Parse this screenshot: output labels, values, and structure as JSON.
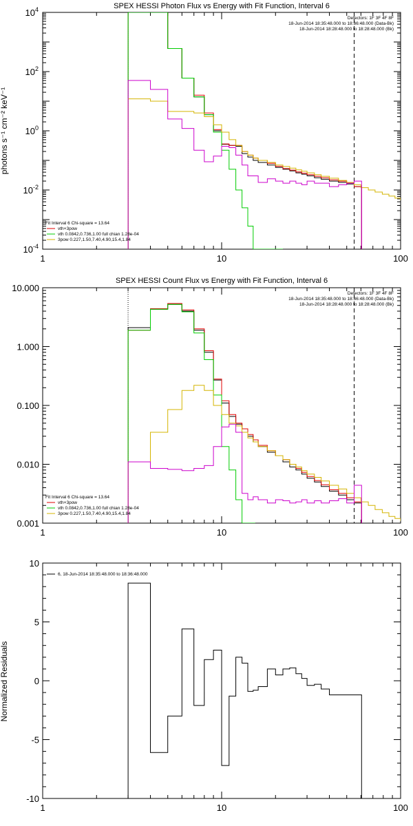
{
  "chart_data": [
    {
      "type": "line",
      "title": "SPEX HESSI Photon Flux vs Energy with Fit Function, Interval 6",
      "ylabel": "photons s⁻¹ cm⁻² keV⁻¹",
      "xlabel": "",
      "xscale": "log",
      "yscale": "log",
      "xlim": [
        1,
        100
      ],
      "ylim": [
        0.0001,
        10000
      ],
      "x_ticks": [
        "1",
        "10",
        "100"
      ],
      "y_ticks": [
        "10^-4",
        "10^-2",
        "10^0",
        "10^2",
        "10^4"
      ],
      "header_lines": [
        "Detectors: 1F 3F 4F 8F",
        "18-Jun-2014 18:35:48.000 to 18:36:48.000 (Data-Bk)",
        "18-Jun-2014 18:28:48.000 to 18:28:48.000 (Bk)"
      ],
      "legend_lines": [
        {
          "text": "Fit Interval  6    Chi-square = 13.64",
          "color": "#000000"
        },
        {
          "text": "vth+3pow",
          "color": "#e00000"
        },
        {
          "text": "vth 0.0842,0.736,1.00  full chian 1.28e-04",
          "color": "#00cc00"
        },
        {
          "text": "3pow 0.227,1.50,7.40,4.90,15.4,1.84",
          "color": "#d4b400"
        }
      ],
      "vlines": [
        {
          "x": 3,
          "style": "dotted",
          "color": "#000000"
        },
        {
          "x": 55,
          "style": "dashed",
          "color": "#000000"
        }
      ],
      "series": [
        {
          "color": "#000000",
          "x": [
            3,
            4,
            5,
            6,
            7,
            8,
            9,
            10,
            11,
            12,
            13,
            14,
            15,
            16,
            18,
            20,
            22,
            24,
            26,
            28,
            30,
            33,
            36,
            40,
            45,
            50,
            55
          ],
          "values": [
            10000,
            10000,
            600,
            60,
            14,
            3.5,
            1,
            0.35,
            0.32,
            0.3,
            0.17,
            0.13,
            0.1,
            0.085,
            0.07,
            0.058,
            0.05,
            0.044,
            0.038,
            0.034,
            0.03,
            0.026,
            0.023,
            0.02,
            0.018,
            0.016,
            0.013
          ]
        },
        {
          "color": "#e00000",
          "x": [
            3,
            4,
            5,
            6,
            7,
            8,
            9,
            10,
            11,
            12,
            13,
            14,
            15,
            16,
            18,
            20,
            22,
            24,
            26,
            28,
            30,
            33,
            36,
            40,
            45,
            50,
            55
          ],
          "values": [
            10000,
            10000,
            600,
            60,
            16,
            4,
            1.1,
            0.36,
            0.32,
            0.32,
            0.2,
            0.15,
            0.12,
            0.1,
            0.08,
            0.063,
            0.053,
            0.047,
            0.041,
            0.037,
            0.033,
            0.029,
            0.026,
            0.022,
            0.02,
            0.017,
            0.013
          ]
        },
        {
          "color": "#00cc00",
          "x": [
            3,
            4,
            5,
            6,
            7,
            8,
            9,
            10,
            11,
            12,
            13,
            14,
            15,
            16,
            18,
            20
          ],
          "values": [
            10000,
            10000,
            600,
            60,
            14,
            3.5,
            0.9,
            0.22,
            0.05,
            0.01,
            0.0025,
            0.0006,
            0.0001,
            0.0001,
            0.0001,
            0.0001
          ]
        },
        {
          "color": "#d4b400",
          "x": [
            3,
            4,
            5,
            6,
            7,
            8,
            9,
            10,
            11,
            12,
            13,
            14,
            15,
            16,
            18,
            20,
            22,
            24,
            26,
            28,
            30,
            33,
            36,
            40,
            45,
            50,
            55,
            60,
            66,
            72,
            79,
            86,
            93,
            100
          ],
          "values": [
            12,
            10,
            4.5,
            4.5,
            4,
            3,
            1.6,
            0.9,
            0.5,
            0.32,
            0.2,
            0.15,
            0.12,
            0.1,
            0.085,
            0.07,
            0.062,
            0.055,
            0.048,
            0.043,
            0.038,
            0.033,
            0.029,
            0.025,
            0.021,
            0.018,
            0.015,
            0.012,
            0.01,
            0.0085,
            0.0072,
            0.0062,
            0.0053,
            0.0046
          ]
        },
        {
          "color": "#cc00cc",
          "x": [
            3,
            4,
            5,
            6,
            7,
            8,
            9,
            10,
            11,
            12,
            13,
            14,
            15,
            16,
            18,
            20,
            22,
            24,
            26,
            28,
            30,
            33,
            36,
            40,
            45,
            50,
            55
          ],
          "values": [
            50,
            25,
            2.5,
            1.2,
            0.22,
            0.09,
            0.14,
            0.3,
            0.27,
            0.15,
            0.07,
            0.03,
            0.03,
            0.018,
            0.024,
            0.02,
            0.017,
            0.02,
            0.017,
            0.015,
            0.02,
            0.017,
            0.017,
            0.013,
            0.015,
            0.017,
            0.02
          ]
        }
      ]
    },
    {
      "type": "line",
      "title": "SPEX HESSI Count Flux vs Energy with Fit Function, Interval 6",
      "ylabel": "",
      "xlabel": "",
      "xscale": "log",
      "yscale": "log",
      "xlim": [
        1,
        100
      ],
      "ylim": [
        0.001,
        10
      ],
      "x_ticks": [
        "1",
        "10",
        "100"
      ],
      "y_ticks": [
        "0.001",
        "0.010",
        "0.100",
        "1.000",
        "10.000"
      ],
      "header_lines": [
        "Detectors: 1F 3F 4F 8F",
        "18-Jun-2014 18:35:48.000 to 18:36:48.000 (Data-Bk)",
        "18-Jun-2014 18:28:48.000 to 18:28:48.000 (Bk)"
      ],
      "legend_lines": [
        {
          "text": "Fit Interval  6    Chi-square = 13.64",
          "color": "#000000"
        },
        {
          "text": "vth+3pow",
          "color": "#e00000"
        },
        {
          "text": "vth 0.0842,0.736,1.00  full chian 1.28e-04",
          "color": "#00cc00"
        },
        {
          "text": "3pow 0.227,1.50,7.40,4.90,15.4,1.84",
          "color": "#d4b400"
        }
      ],
      "vlines": [
        {
          "x": 3,
          "style": "dotted",
          "color": "#000000"
        },
        {
          "x": 55,
          "style": "dashed",
          "color": "#000000"
        }
      ],
      "series": [
        {
          "color": "#000000",
          "x": [
            3,
            4,
            5,
            6,
            7,
            8,
            9,
            10,
            11,
            12,
            13,
            14,
            15,
            16,
            18,
            20,
            22,
            24,
            26,
            28,
            30,
            33,
            36,
            40,
            45,
            50,
            55
          ],
          "values": [
            2.1,
            4.3,
            5.2,
            4,
            1.9,
            0.8,
            0.27,
            0.11,
            0.065,
            0.048,
            0.04,
            0.03,
            0.024,
            0.02,
            0.016,
            0.014,
            0.011,
            0.009,
            0.008,
            0.0068,
            0.0058,
            0.005,
            0.0042,
            0.0035,
            0.003,
            0.0025,
            0.0022
          ]
        },
        {
          "color": "#e00000",
          "x": [
            3,
            4,
            5,
            6,
            7,
            8,
            9,
            10,
            11,
            12,
            13,
            14,
            15,
            16,
            18,
            20,
            22,
            24,
            26,
            28,
            30,
            33,
            36,
            40,
            45,
            50,
            55
          ],
          "values": [
            1.9,
            4.4,
            5.4,
            4.2,
            2,
            0.85,
            0.28,
            0.12,
            0.07,
            0.05,
            0.04,
            0.032,
            0.026,
            0.021,
            0.017,
            0.014,
            0.012,
            0.01,
            0.0085,
            0.0073,
            0.0062,
            0.0053,
            0.0045,
            0.0037,
            0.0032,
            0.0027,
            0.0023
          ]
        },
        {
          "color": "#00cc00",
          "x": [
            3,
            4,
            5,
            6,
            7,
            8,
            9,
            10,
            11,
            12,
            13,
            14
          ],
          "values": [
            1.9,
            4.3,
            5.2,
            3.9,
            1.7,
            0.6,
            0.15,
            0.02,
            0.008,
            0.0025,
            0.001,
            0.001
          ]
        },
        {
          "color": "#d4b400",
          "x": [
            3,
            4,
            5,
            6,
            7,
            8,
            9,
            10,
            11,
            12,
            13,
            14,
            15,
            16,
            18,
            20,
            22,
            24,
            26,
            28,
            30,
            33,
            36,
            40,
            45,
            50,
            55,
            60,
            66,
            72,
            79,
            86,
            93,
            100
          ],
          "values": [
            0.011,
            0.035,
            0.085,
            0.18,
            0.22,
            0.18,
            0.1,
            0.07,
            0.05,
            0.045,
            0.035,
            0.028,
            0.024,
            0.02,
            0.017,
            0.014,
            0.012,
            0.01,
            0.009,
            0.0078,
            0.0068,
            0.006,
            0.0052,
            0.0044,
            0.0038,
            0.0032,
            0.0027,
            0.0023,
            0.002,
            0.0017,
            0.0015,
            0.0013,
            0.0012,
            0.0011
          ]
        },
        {
          "color": "#cc00cc",
          "x": [
            3,
            4,
            5,
            6,
            7,
            8,
            9,
            10,
            11,
            12,
            13,
            14,
            15,
            16,
            18,
            20,
            22,
            24,
            26,
            28,
            30,
            33,
            36,
            40,
            45,
            50,
            55
          ],
          "values": [
            0.011,
            0.0085,
            0.0082,
            0.0078,
            0.0085,
            0.0095,
            0.02,
            0.043,
            0.048,
            0.035,
            0.0032,
            0.0025,
            0.0028,
            0.0025,
            0.0022,
            0.0025,
            0.0024,
            0.0022,
            0.0023,
            0.0025,
            0.0022,
            0.0024,
            0.0022,
            0.0024,
            0.0026,
            0.0022,
            0.0044
          ]
        }
      ]
    },
    {
      "type": "line",
      "title": "",
      "ylabel": "Normalized Residuals",
      "xlabel": "",
      "xscale": "log",
      "yscale": "linear",
      "xlim": [
        1,
        100
      ],
      "ylim": [
        -10,
        10
      ],
      "x_ticks": [
        "1",
        "10",
        "100"
      ],
      "y_ticks": [
        "-10",
        "-5",
        "0",
        "5",
        "10"
      ],
      "legend_lines": [
        {
          "text": "6, 18-Jun-2014 18:35:48.000 to 18:36:48.000",
          "color": "#000000"
        }
      ],
      "series": [
        {
          "color": "#000000",
          "x": [
            3,
            4,
            5,
            6,
            7,
            8,
            9,
            10,
            11,
            12,
            13,
            14,
            15,
            16,
            18,
            20,
            22,
            24,
            26,
            28,
            30,
            33,
            36,
            40,
            45,
            50,
            55
          ],
          "values": [
            8.3,
            -6.1,
            -3,
            4.4,
            -2.1,
            1.8,
            2.6,
            -7.2,
            -1.3,
            2,
            1.5,
            -0.9,
            -0.8,
            -0.5,
            1,
            0.5,
            1,
            1.1,
            0.6,
            0.2,
            -0.4,
            -0.3,
            -0.7,
            -1.2,
            -1.2,
            -1.2,
            -1.2
          ]
        }
      ]
    }
  ]
}
